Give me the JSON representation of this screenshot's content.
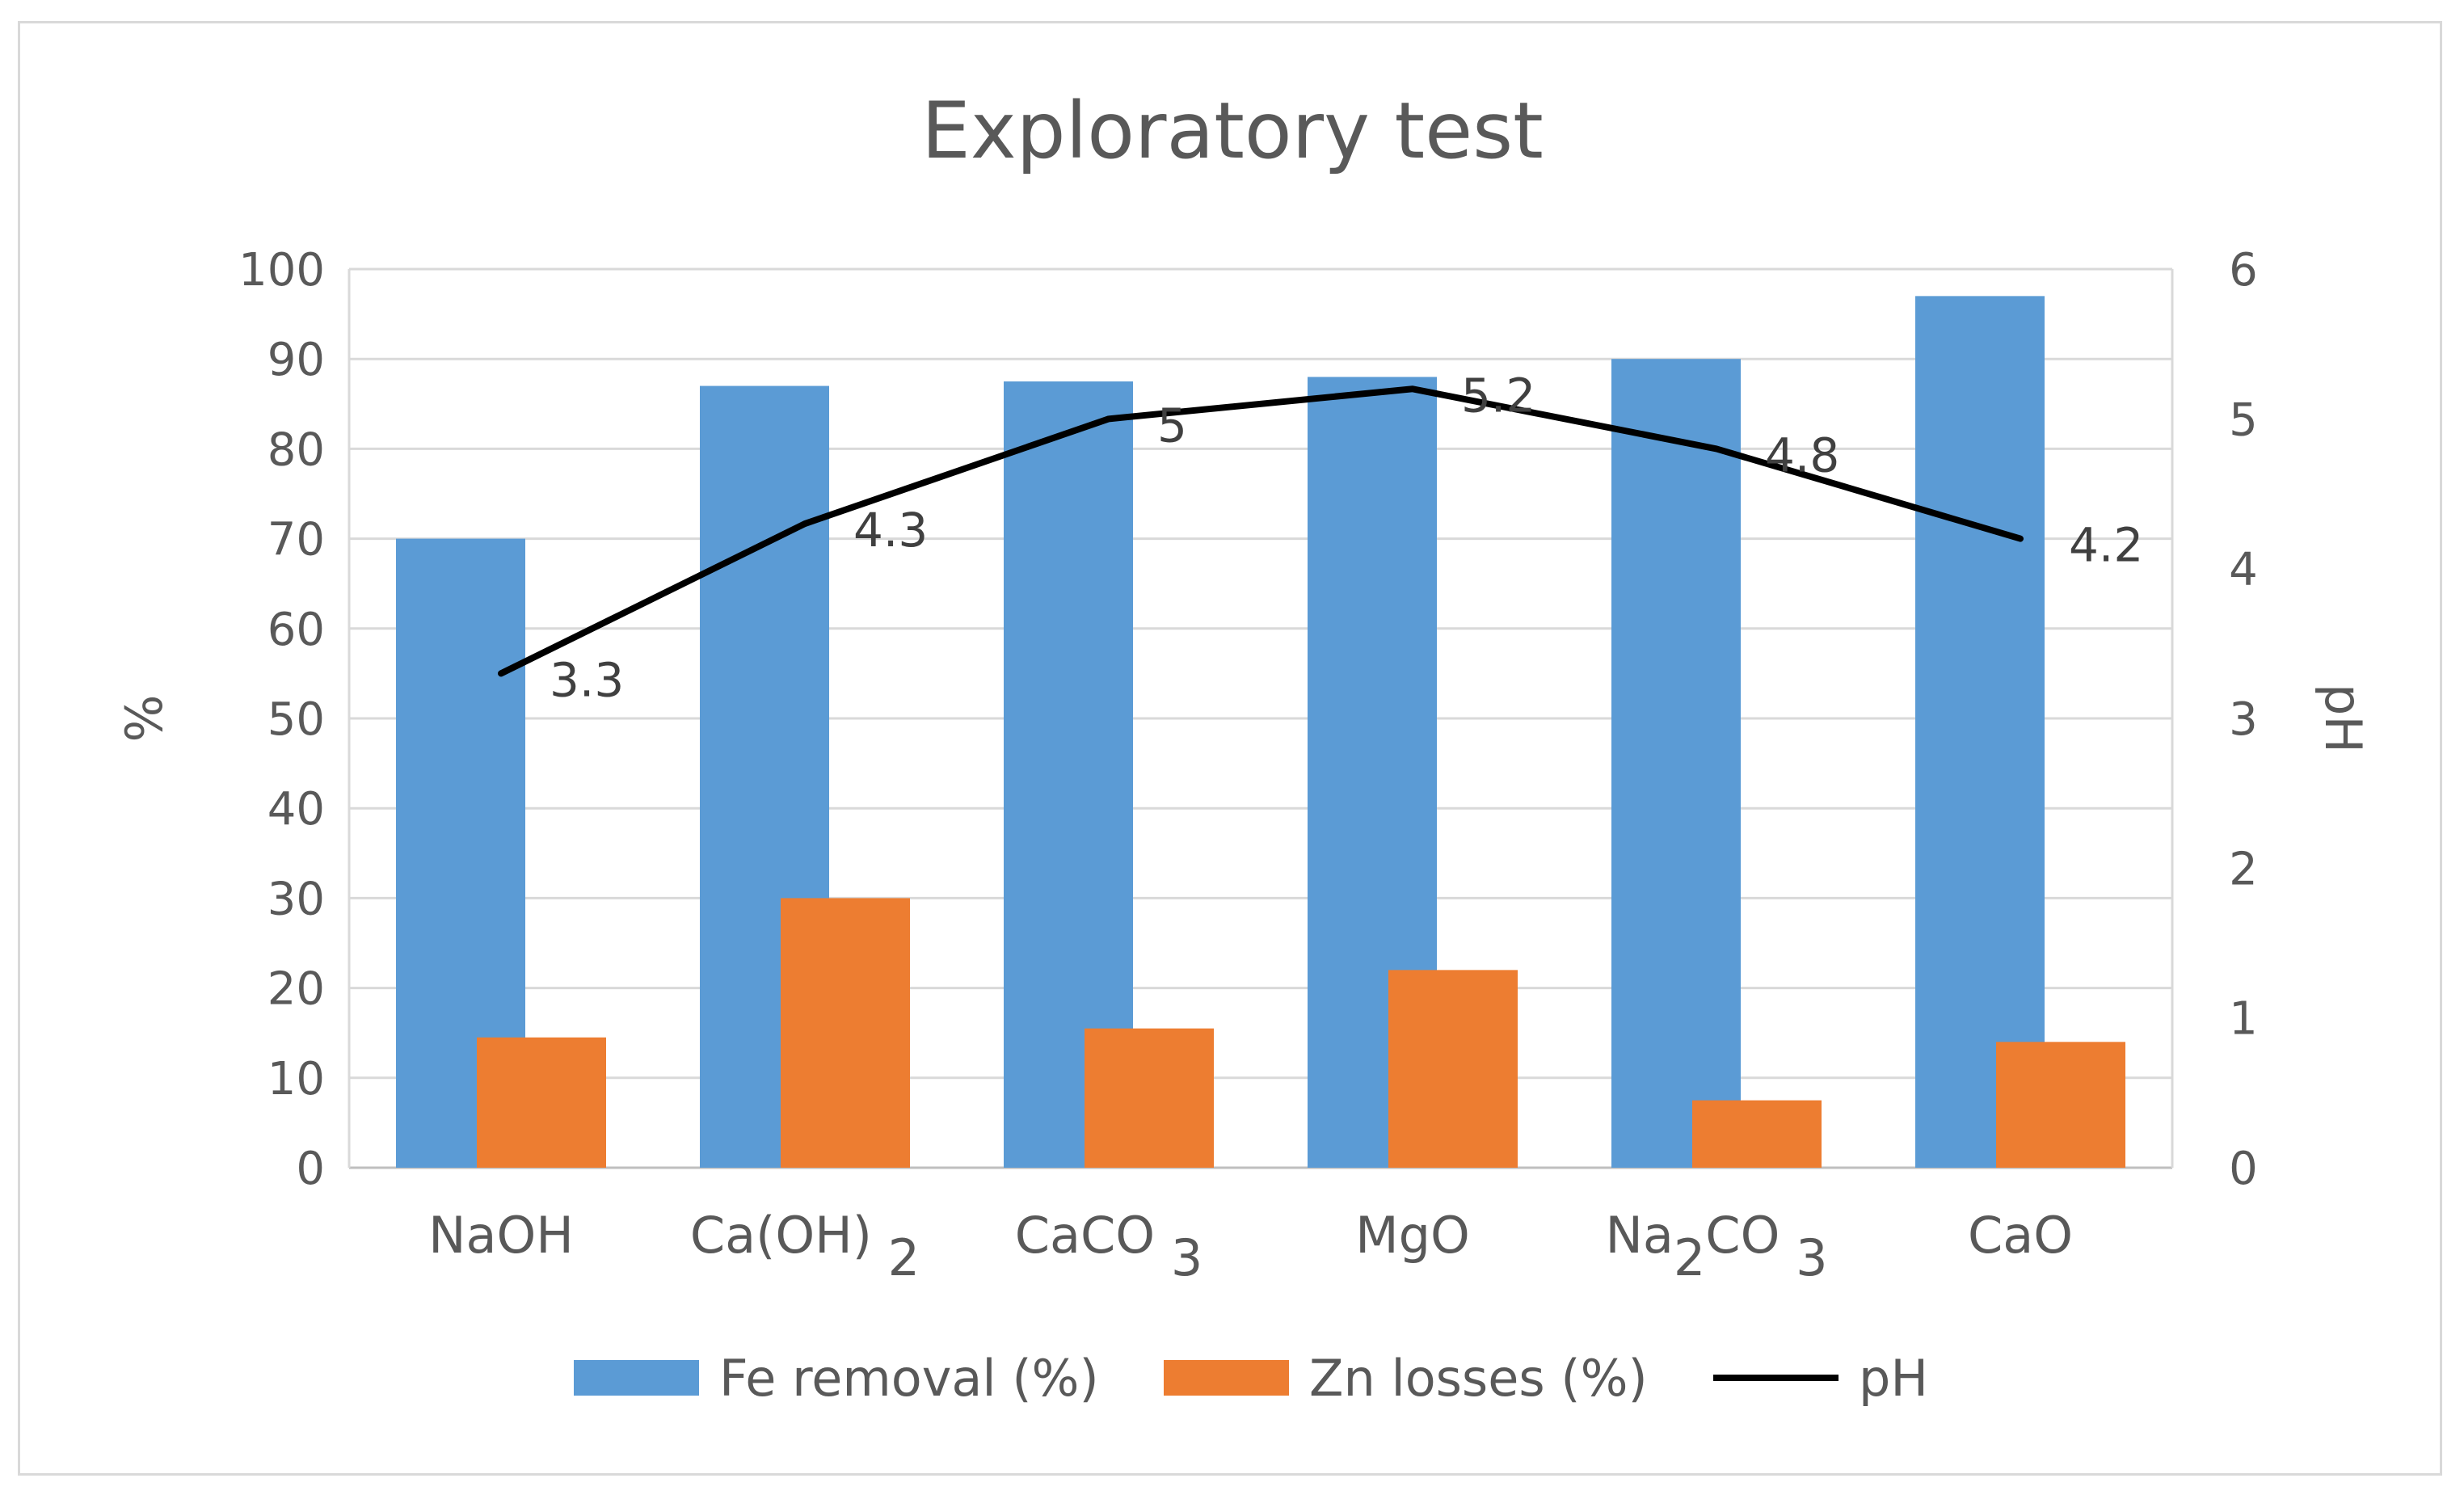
{
  "chart_data": {
    "type": "bar",
    "title": "Exploratory test",
    "categories": [
      {
        "base": "NaOH",
        "parts": [
          {
            "t": "NaOH",
            "sub": false
          }
        ]
      },
      {
        "base": "Ca(OH)2",
        "parts": [
          {
            "t": "Ca(OH)",
            "sub": false
          },
          {
            "t": " 2",
            "sub": true
          }
        ]
      },
      {
        "base": "CaCO3",
        "parts": [
          {
            "t": "CaCO ",
            "sub": false
          },
          {
            "t": "3",
            "sub": true
          }
        ]
      },
      {
        "base": "MgO",
        "parts": [
          {
            "t": "MgO",
            "sub": false
          }
        ]
      },
      {
        "base": "Na2CO3",
        "parts": [
          {
            "t": "Na",
            "sub": false
          },
          {
            "t": "2",
            "sub": true
          },
          {
            "t": "CO ",
            "sub": false
          },
          {
            "t": "3",
            "sub": true
          }
        ]
      },
      {
        "base": "CaO",
        "parts": [
          {
            "t": "CaO",
            "sub": false
          }
        ]
      }
    ],
    "series": [
      {
        "name": "Fe removal (%)",
        "kind": "bar",
        "axis": "left",
        "color": "#5b9bd5",
        "values": [
          70,
          87,
          87.5,
          88,
          90,
          97
        ]
      },
      {
        "name": "Zn losses (%)",
        "kind": "bar",
        "axis": "left",
        "color": "#ed7d31",
        "values": [
          14.5,
          30,
          15.5,
          22,
          7.5,
          14
        ]
      },
      {
        "name": "pH",
        "kind": "line",
        "axis": "right",
        "color": "#000000",
        "values": [
          3.3,
          4.3,
          5,
          5.2,
          4.8,
          4.2
        ],
        "labels": [
          "3.3",
          "4.3",
          "5",
          "5.2",
          "4.8",
          "4.2"
        ]
      }
    ],
    "ylabel": "%",
    "y2label": "pH",
    "ylim": [
      0,
      100
    ],
    "y2lim": [
      0,
      6
    ],
    "yticks": [
      "0",
      "10",
      "20",
      "30",
      "40",
      "50",
      "60",
      "70",
      "80",
      "90",
      "100"
    ],
    "y2ticks": [
      "0",
      "1",
      "2",
      "3",
      "4",
      "5",
      "6"
    ],
    "grid": true,
    "legend_position": "bottom"
  }
}
